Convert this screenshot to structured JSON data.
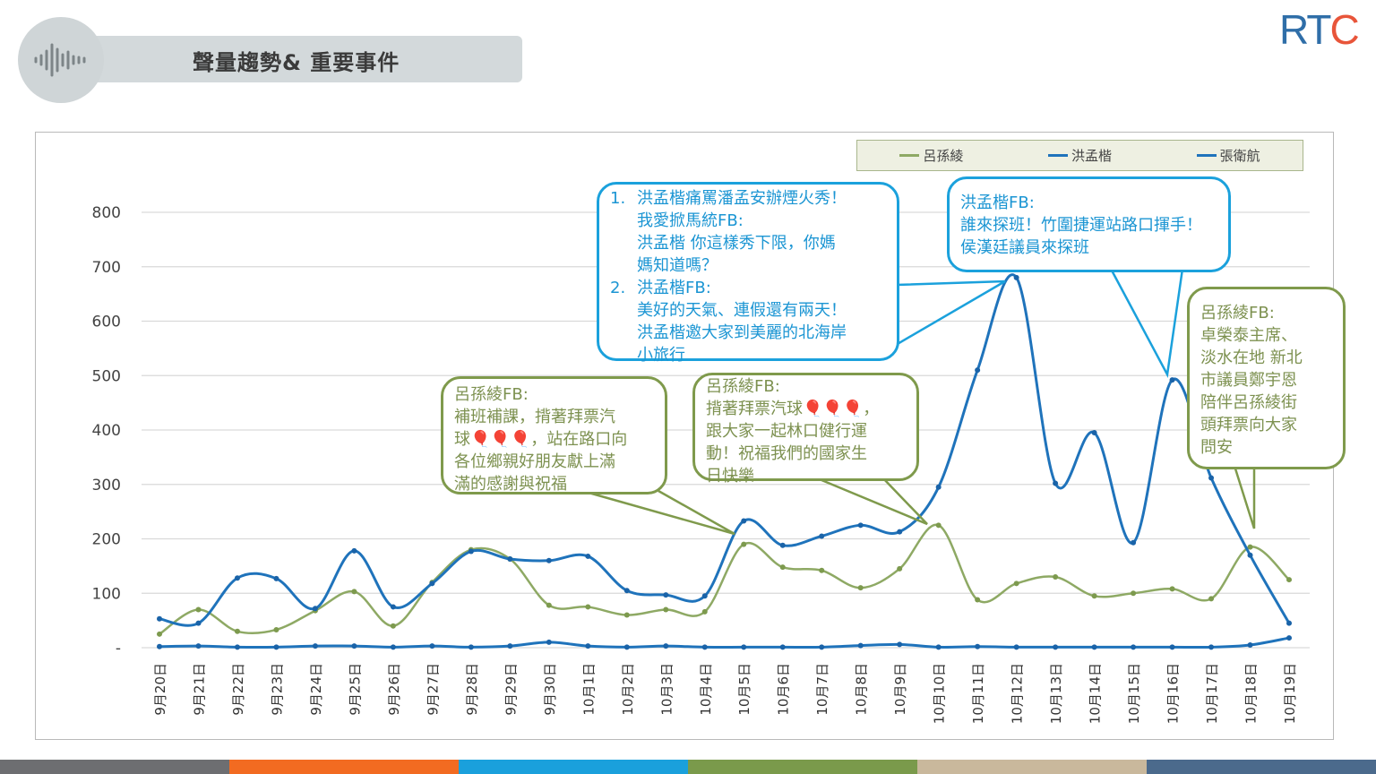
{
  "header": {
    "title": "聲量趨勢& 重要事件",
    "icon": "sound-wave-icon"
  },
  "logo": {
    "text": "RTC"
  },
  "colors": {
    "lu": "#8ea964",
    "hung": "#1f73bb",
    "chang": "#1f73bb",
    "strip": [
      "#6d6e71",
      "#f26b21",
      "#1aa0dc",
      "#7a9a4b",
      "#c9b89c",
      "#4b6a8c"
    ]
  },
  "legend": [
    "呂孫綾",
    "洪孟楷",
    "張衛航"
  ],
  "callouts": {
    "c1": {
      "items": [
        {
          "num": "1.",
          "lines": [
            "洪孟楷痛罵潘孟安辦煙火秀！",
            "我愛掀馬統FB:",
            "洪孟楷 你這樣秀下限，你媽",
            "媽知道嗎？"
          ]
        },
        {
          "num": "2.",
          "lines": [
            "洪孟楷FB:",
            "美好的天氣、連假還有兩天！",
            "洪孟楷邀大家到美麗的北海岸",
            "小旅行"
          ]
        }
      ]
    },
    "c2": {
      "lines": [
        "洪孟楷FB:",
        "誰來探班！竹圍捷運站路口揮手！",
        "侯漢廷議員來探班"
      ]
    },
    "c3": {
      "lines": [
        "呂孫綾FB:",
        "補班補課，揹著拜票汽",
        "球🎈🎈🎈，站在路口向",
        "各位鄉親好朋友獻上滿",
        "滿的感謝與祝福"
      ]
    },
    "c4": {
      "lines": [
        "呂孫綾FB:",
        "揹著拜票汽球🎈🎈🎈，",
        "跟大家一起林口健行運",
        "動！祝福我們的國家生",
        "日快樂"
      ]
    },
    "c5": {
      "lines": [
        "呂孫綾FB:",
        "卓榮泰主席、",
        "淡水在地 新北",
        "市議員鄭宇恩",
        "陪伴呂孫綾街",
        "頭拜票向大家",
        "問安"
      ]
    }
  },
  "chart_data": {
    "type": "line",
    "title": "聲量趨勢& 重要事件",
    "xlabel": "",
    "ylabel": "",
    "ylim": [
      0,
      800
    ],
    "yticks": [
      0,
      100,
      200,
      300,
      400,
      500,
      600,
      700,
      800
    ],
    "ytick_labels": [
      "-",
      "100",
      "200",
      "300",
      "400",
      "500",
      "600",
      "700",
      "800"
    ],
    "grid": true,
    "legend_position": "top-right",
    "categories": [
      "9月20日",
      "9月21日",
      "9月22日",
      "9月23日",
      "9月24日",
      "9月25日",
      "9月26日",
      "9月27日",
      "9月28日",
      "9月29日",
      "9月30日",
      "10月1日",
      "10月2日",
      "10月3日",
      "10月4日",
      "10月5日",
      "10月6日",
      "10月7日",
      "10月8日",
      "10月9日",
      "10月10日",
      "10月11日",
      "10月12日",
      "10月13日",
      "10月14日",
      "10月15日",
      "10月16日",
      "10月17日",
      "10月18日",
      "10月19日"
    ],
    "series": [
      {
        "name": "呂孫綾",
        "color": "#8ea964",
        "values": [
          25,
          70,
          30,
          33,
          68,
          103,
          40,
          120,
          180,
          163,
          78,
          75,
          60,
          70,
          66,
          190,
          148,
          142,
          110,
          145,
          225,
          88,
          118,
          130,
          95,
          100,
          108,
          90,
          185,
          125
        ]
      },
      {
        "name": "洪孟楷",
        "color": "#1f73bb",
        "values": [
          53,
          45,
          128,
          127,
          72,
          178,
          75,
          118,
          177,
          163,
          160,
          168,
          105,
          97,
          95,
          233,
          188,
          205,
          225,
          213,
          295,
          510,
          680,
          302,
          395,
          193,
          492,
          312,
          170,
          45
        ]
      },
      {
        "name": "張衛航",
        "color": "#1f73bb",
        "values": [
          2,
          3,
          1,
          1,
          3,
          3,
          1,
          3,
          1,
          3,
          10,
          3,
          1,
          3,
          1,
          1,
          1,
          1,
          4,
          6,
          1,
          2,
          1,
          1,
          1,
          1,
          1,
          1,
          5,
          18
        ]
      }
    ]
  }
}
